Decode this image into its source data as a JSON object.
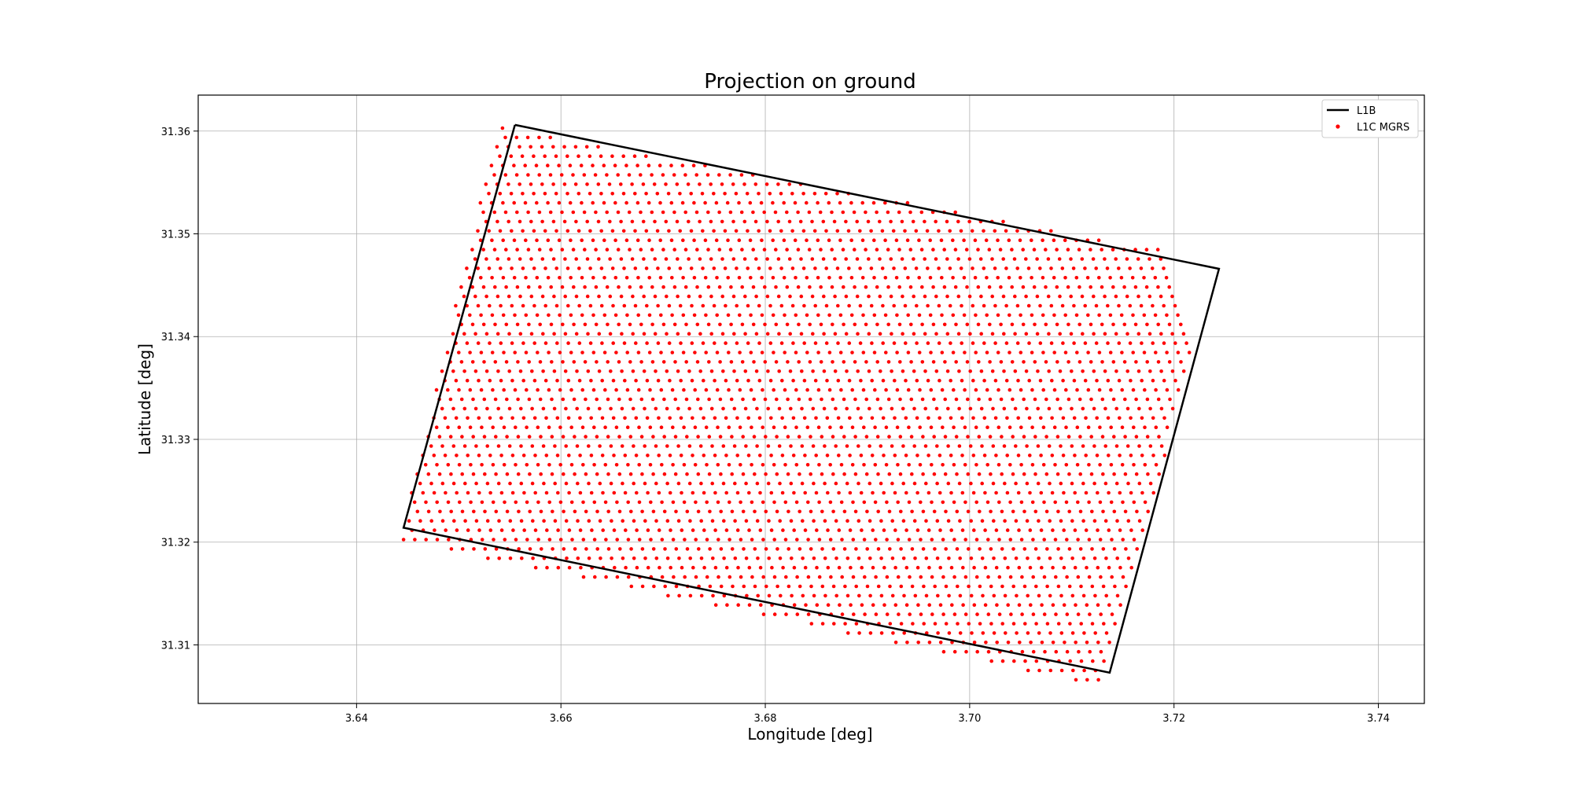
{
  "chart_data": {
    "type": "scatter",
    "title": "Projection on ground",
    "xlabel": "Longitude [deg]",
    "ylabel": "Latitude [deg]",
    "xlim": [
      3.6245,
      3.7445
    ],
    "ylim": [
      31.3043,
      31.3635
    ],
    "xticks": [
      3.64,
      3.66,
      3.68,
      3.7,
      3.72,
      3.74
    ],
    "xtick_labels": [
      "3.64",
      "3.66",
      "3.68",
      "3.70",
      "3.72",
      "3.74"
    ],
    "yticks": [
      31.31,
      31.32,
      31.33,
      31.34,
      31.35,
      31.36
    ],
    "ytick_labels": [
      "31.31",
      "31.32",
      "31.33",
      "31.34",
      "31.35",
      "31.36"
    ],
    "grid": true,
    "legend_position": "top-right",
    "series": [
      {
        "name": "L1B",
        "kind": "line",
        "color": "#000000",
        "points": [
          [
            3.6555,
            31.3606
          ],
          [
            3.7244,
            31.3466
          ],
          [
            3.7137,
            31.3073
          ],
          [
            3.6446,
            31.3214
          ],
          [
            3.6555,
            31.3606
          ]
        ]
      },
      {
        "name": "L1C MGRS",
        "kind": "scatter",
        "color": "#ff0000",
        "grid_spec": {
          "lon_start": 3.6444,
          "lon_step": 0.0011,
          "lat_start": 31.3066,
          "lat_step": 0.00091,
          "lon_stagger_per_lat_step": -0.00028,
          "clip_polygon_lonlat": [
            [
              3.6538,
              31.3604
            ],
            [
              3.7244,
              31.3474
            ],
            [
              3.7128,
              31.306
            ],
            [
              3.6443,
              31.3202
            ]
          ]
        }
      }
    ]
  }
}
